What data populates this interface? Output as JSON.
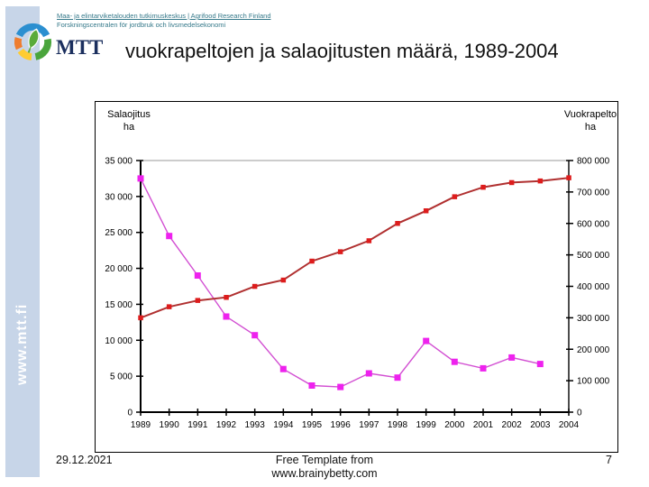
{
  "slide": {
    "header": {
      "org_line1": "Maa- ja elintarviketalouden tutkimuskeskus | Agrifood Research Finland",
      "org_line2": "Forskningscentralen för jordbruk och livsmedelsekonomi",
      "logo_text": "MTT",
      "title": "vuokrapeltojen ja salaojitusten määrä, 1989-2004"
    },
    "sidebar": {
      "vertical_text": "www.mtt.fi"
    },
    "footer": {
      "date": "29.12.2021",
      "center_line1": "Free Template from",
      "center_line2": "www.brainybetty.com",
      "page_number": "7"
    }
  },
  "chart_data": {
    "type": "line",
    "x": [
      1989,
      1990,
      1991,
      1992,
      1993,
      1994,
      1995,
      1996,
      1997,
      1998,
      1999,
      2000,
      2001,
      2002,
      2003,
      2004
    ],
    "x_tick_labels": [
      "1989",
      "1990",
      "1991",
      "1992",
      "1993",
      "1994",
      "1995",
      "1996",
      "1997",
      "1998",
      "1999",
      "2000",
      "2001",
      "2002",
      "2003",
      "2004"
    ],
    "series": [
      {
        "name": "Salaojitus",
        "axis": "left",
        "line_color": "#d24fd2",
        "marker_color": "#ee22ee",
        "marker_px": 7,
        "line_width": 1.4,
        "values": [
          32500,
          24500,
          19000,
          13300,
          10700,
          6000,
          3700,
          3500,
          5400,
          4800,
          9900,
          7000,
          6100,
          7600,
          6700,
          null
        ]
      },
      {
        "name": "Vuokrapelto",
        "axis": "right",
        "line_color": "#b03030",
        "marker_color": "#dd1c1c",
        "marker_px": 5.5,
        "line_width": 2,
        "values": [
          300000,
          335000,
          355000,
          365000,
          400000,
          420000,
          480000,
          510000,
          545000,
          600000,
          640000,
          685000,
          715000,
          730000,
          735000,
          745000
        ]
      }
    ],
    "left_axis": {
      "label_lines": [
        "Salaojitus",
        "ha"
      ],
      "min": 0,
      "max": 35000,
      "tick_step": 5000,
      "tick_labels": [
        "0",
        "5 000",
        "10 000",
        "15 000",
        "20 000",
        "25 000",
        "30 000",
        "35 000"
      ]
    },
    "right_axis": {
      "label_lines": [
        "Vuokrapelto",
        "ha"
      ],
      "min": 0,
      "max": 800000,
      "tick_step": 100000,
      "tick_labels": [
        "0",
        "100 000",
        "200 000",
        "300 000",
        "400 000",
        "500 000",
        "600 000",
        "700 000",
        "800 000"
      ]
    },
    "gridline": {
      "position": "top",
      "color": "#999999"
    },
    "legend": "none",
    "title": ""
  }
}
